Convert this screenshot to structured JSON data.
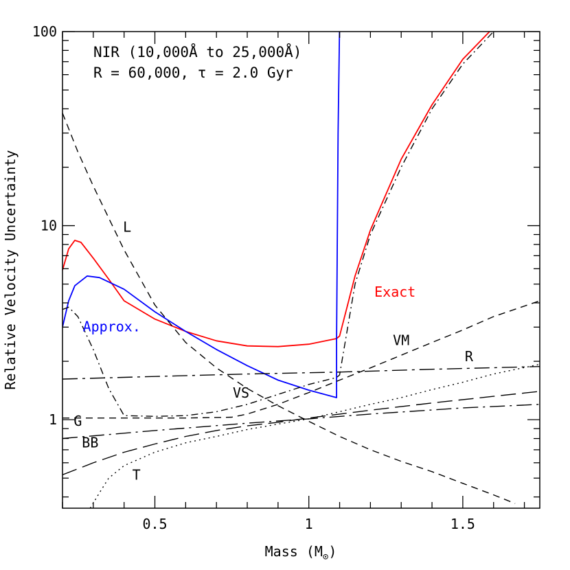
{
  "chart_data": {
    "type": "line",
    "xlabel": "Mass (M",
    "xlabel_sub": "⊙",
    "xlabel_close": ")",
    "ylabel": "Relative Velocity Uncertainty",
    "xlim": [
      0.2,
      1.75
    ],
    "ylim": [
      0.35,
      100
    ],
    "yscale": "log",
    "xticks": [
      {
        "value": 0.5,
        "label": "0.5"
      },
      {
        "value": 1.0,
        "label": "1"
      },
      {
        "value": 1.5,
        "label": "1.5"
      }
    ],
    "yticks": [
      {
        "value": 1,
        "label": "1"
      },
      {
        "value": 10,
        "label": "10"
      },
      {
        "value": 100,
        "label": "100"
      }
    ],
    "annotation": {
      "line1": "NIR (10,000Å to 25,000Å)",
      "line2": "R = 60,000, τ = 2.0 Gyr"
    },
    "series": [
      {
        "name": "Exact",
        "color": "#ff0000",
        "dash": "solid",
        "points": [
          [
            0.2,
            5.9
          ],
          [
            0.22,
            7.6
          ],
          [
            0.24,
            8.4
          ],
          [
            0.26,
            8.2
          ],
          [
            0.3,
            6.8
          ],
          [
            0.35,
            5.3
          ],
          [
            0.4,
            4.1
          ],
          [
            0.5,
            3.3
          ],
          [
            0.6,
            2.85
          ],
          [
            0.7,
            2.55
          ],
          [
            0.8,
            2.4
          ],
          [
            0.9,
            2.38
          ],
          [
            1.0,
            2.45
          ],
          [
            1.09,
            2.62
          ],
          [
            1.1,
            2.7
          ],
          [
            1.15,
            5.5
          ],
          [
            1.2,
            9.5
          ],
          [
            1.3,
            22
          ],
          [
            1.4,
            42
          ],
          [
            1.5,
            72
          ],
          [
            1.6,
            105
          ]
        ]
      },
      {
        "name": "Approx.",
        "color": "#0000ff",
        "dash": "solid",
        "points": [
          [
            0.2,
            3.0
          ],
          [
            0.22,
            4.1
          ],
          [
            0.24,
            4.9
          ],
          [
            0.28,
            5.5
          ],
          [
            0.32,
            5.4
          ],
          [
            0.4,
            4.7
          ],
          [
            0.5,
            3.6
          ],
          [
            0.6,
            2.85
          ],
          [
            0.7,
            2.3
          ],
          [
            0.8,
            1.9
          ],
          [
            0.9,
            1.6
          ],
          [
            1.0,
            1.42
          ],
          [
            1.09,
            1.3
          ],
          [
            1.09,
            2.6
          ],
          [
            1.095,
            30
          ],
          [
            1.1,
            110
          ]
        ]
      },
      {
        "name": "L",
        "color": "#000000",
        "dash": "10,7",
        "points": [
          [
            0.2,
            38
          ],
          [
            0.25,
            24
          ],
          [
            0.3,
            16
          ],
          [
            0.4,
            7.5
          ],
          [
            0.5,
            3.9
          ],
          [
            0.6,
            2.5
          ],
          [
            0.7,
            1.85
          ],
          [
            0.8,
            1.45
          ],
          [
            0.9,
            1.18
          ],
          [
            1.0,
            0.98
          ],
          [
            1.1,
            0.82
          ],
          [
            1.2,
            0.7
          ],
          [
            1.3,
            0.61
          ],
          [
            1.4,
            0.54
          ],
          [
            1.5,
            0.47
          ],
          [
            1.6,
            0.41
          ],
          [
            1.67,
            0.37
          ]
        ]
      },
      {
        "name": "VM",
        "color": "#000000",
        "dash": "10,7",
        "points": [
          [
            0.2,
            1.02
          ],
          [
            0.4,
            1.02
          ],
          [
            0.6,
            1.02
          ],
          [
            0.75,
            1.03
          ],
          [
            0.8,
            1.07
          ],
          [
            0.9,
            1.2
          ],
          [
            1.0,
            1.38
          ],
          [
            1.1,
            1.6
          ],
          [
            1.2,
            1.85
          ],
          [
            1.3,
            2.15
          ],
          [
            1.4,
            2.5
          ],
          [
            1.5,
            2.9
          ],
          [
            1.6,
            3.4
          ],
          [
            1.75,
            4.1
          ]
        ]
      },
      {
        "name": "R",
        "color": "#000000",
        "dash": "22,7,4,7",
        "points": [
          [
            0.2,
            1.62
          ],
          [
            0.5,
            1.67
          ],
          [
            0.8,
            1.72
          ],
          [
            1.1,
            1.76
          ],
          [
            1.4,
            1.82
          ],
          [
            1.75,
            1.88
          ]
        ]
      },
      {
        "name": "VS",
        "color": "#000000",
        "dash": "10,5,2,5",
        "points": [
          [
            0.2,
            3.7
          ],
          [
            0.22,
            3.8
          ],
          [
            0.25,
            3.4
          ],
          [
            0.3,
            2.3
          ],
          [
            0.35,
            1.45
          ],
          [
            0.4,
            1.05
          ],
          [
            0.5,
            1.04
          ],
          [
            0.6,
            1.05
          ],
          [
            0.7,
            1.1
          ],
          [
            0.8,
            1.2
          ],
          [
            0.9,
            1.35
          ],
          [
            1.0,
            1.52
          ],
          [
            1.09,
            1.65
          ],
          [
            1.1,
            1.7
          ],
          [
            1.15,
            5.0
          ],
          [
            1.2,
            9.0
          ],
          [
            1.3,
            20
          ],
          [
            1.4,
            40
          ],
          [
            1.5,
            68
          ],
          [
            1.6,
            100
          ],
          [
            1.62,
            105
          ]
        ]
      },
      {
        "name": "G",
        "color": "#000000",
        "dash": "22,7,3,7",
        "points": [
          [
            0.2,
            0.8
          ],
          [
            0.5,
            0.88
          ],
          [
            0.8,
            0.96
          ],
          [
            1.0,
            1.01
          ],
          [
            1.2,
            1.07
          ],
          [
            1.5,
            1.15
          ],
          [
            1.75,
            1.2
          ]
        ]
      },
      {
        "name": "BB",
        "color": "#000000",
        "dash": "22,9",
        "points": [
          [
            0.2,
            0.52
          ],
          [
            0.3,
            0.6
          ],
          [
            0.4,
            0.68
          ],
          [
            0.5,
            0.75
          ],
          [
            0.6,
            0.82
          ],
          [
            0.7,
            0.88
          ],
          [
            0.8,
            0.93
          ],
          [
            0.9,
            0.97
          ],
          [
            1.0,
            1.02
          ],
          [
            1.2,
            1.12
          ],
          [
            1.4,
            1.22
          ],
          [
            1.6,
            1.32
          ],
          [
            1.75,
            1.4
          ]
        ]
      },
      {
        "name": "T",
        "color": "#000000",
        "dash": "2,5",
        "points": [
          [
            0.29,
            0.35
          ],
          [
            0.32,
            0.42
          ],
          [
            0.35,
            0.5
          ],
          [
            0.4,
            0.58
          ],
          [
            0.5,
            0.68
          ],
          [
            0.6,
            0.76
          ],
          [
            0.7,
            0.82
          ],
          [
            0.8,
            0.89
          ],
          [
            0.9,
            0.95
          ],
          [
            1.0,
            1.01
          ],
          [
            1.1,
            1.1
          ],
          [
            1.2,
            1.2
          ],
          [
            1.3,
            1.3
          ],
          [
            1.4,
            1.43
          ],
          [
            1.5,
            1.56
          ],
          [
            1.6,
            1.72
          ],
          [
            1.75,
            1.93
          ]
        ]
      }
    ],
    "curve_labels": [
      {
        "text": "L",
        "x": 0.41,
        "y": 9.3,
        "color": "#000000"
      },
      {
        "text": "Exact",
        "x": 1.28,
        "y": 4.3,
        "color": "#ff0000"
      },
      {
        "text": "Approx.",
        "x": 0.36,
        "y": 2.85,
        "color": "#0000ff"
      },
      {
        "text": "VM",
        "x": 1.3,
        "y": 2.42,
        "color": "#000000"
      },
      {
        "text": "R",
        "x": 1.52,
        "y": 2.0,
        "color": "#000000"
      },
      {
        "text": "VS",
        "x": 0.78,
        "y": 1.3,
        "color": "#000000"
      },
      {
        "text": "G",
        "x": 0.25,
        "y": 0.93,
        "color": "#000000"
      },
      {
        "text": "BB",
        "x": 0.29,
        "y": 0.72,
        "color": "#000000"
      },
      {
        "text": "T",
        "x": 0.44,
        "y": 0.49,
        "color": "#000000"
      }
    ]
  }
}
